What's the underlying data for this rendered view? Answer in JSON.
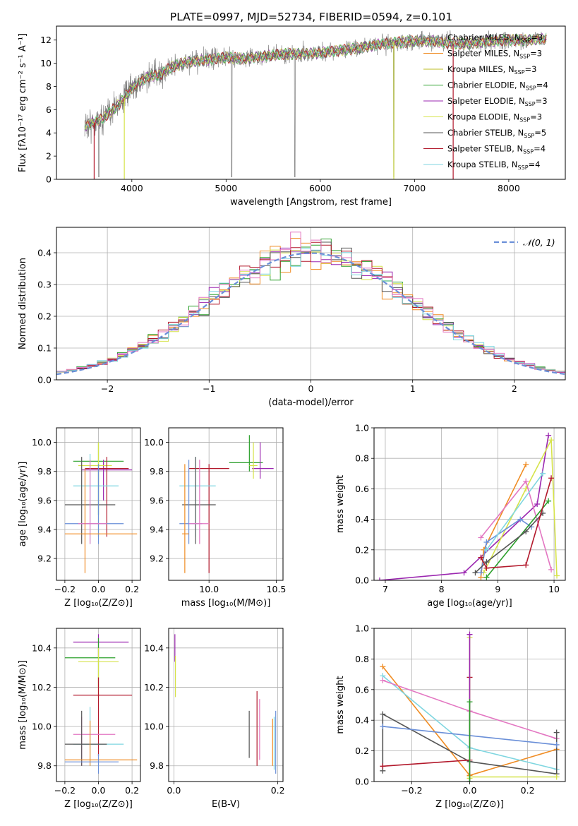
{
  "figure": {
    "title": "PLATE=0997, MJD=52734, FIBERID=0594, z=0.101"
  },
  "series_colors": [
    "#7f7f7f",
    "#f08c23",
    "#bcbd22",
    "#2ca02c",
    "#9b27b0",
    "#d6e34a",
    "#555555",
    "#b2182b",
    "#7fd6e0",
    "#e377c2",
    "#6a8fd8"
  ],
  "chart_data": [
    {
      "id": "spectrum",
      "type": "line",
      "title": "PLATE=0997, MJD=52734, FIBERID=0594, z=0.101",
      "xlabel": "wavelength [Angstrom, rest frame]",
      "ylabel": "Flux [fλ10⁻¹⁷ erg cm⁻² s⁻¹ A⁻¹]",
      "xlim": [
        3200,
        8600
      ],
      "ylim": [
        0,
        13.2
      ],
      "xticks": [
        4000,
        5000,
        6000,
        7000,
        8000
      ],
      "yticks": [
        0,
        2,
        4,
        6,
        8,
        10,
        12
      ],
      "grid": false,
      "legend_position": "right",
      "continuum": {
        "x": [
          3500,
          3600,
          3700,
          3800,
          3900,
          4000,
          4100,
          4200,
          4300,
          4400,
          4500,
          4600,
          4800,
          5000,
          5200,
          5400,
          5600,
          5800,
          6000,
          6200,
          6400,
          6600,
          6800,
          7000,
          7200,
          7400,
          7600,
          7800,
          8000,
          8200,
          8400
        ],
        "y": [
          4.6,
          4.9,
          5.3,
          6.0,
          6.8,
          7.8,
          8.5,
          8.9,
          9.0,
          9.6,
          9.9,
          10.1,
          10.3,
          10.5,
          10.4,
          10.6,
          10.8,
          10.8,
          10.9,
          11.1,
          11.3,
          11.6,
          11.8,
          11.9,
          11.9,
          11.7,
          11.7,
          11.9,
          12.0,
          12.0,
          12.1
        ]
      },
      "legend": [
        "Chabrier MILES, N_SSP=3",
        "Salpeter MILES, N_SSP=3",
        "Kroupa MILES, N_SSP=3",
        "Chabrier ELODIE, N_SSP=4",
        "Salpeter ELODIE, N_SSP=3",
        "Kroupa ELODIE, N_SSP=3",
        "Chabrier STELIB, N_SSP=5",
        "Salpeter STELIB, N_SSP=4",
        "Kroupa STELIB, N_SSP=4"
      ]
    },
    {
      "id": "residuals",
      "type": "line",
      "xlabel": "(data-model)/error",
      "ylabel": "Normed distribution",
      "xlim": [
        -2.5,
        2.5
      ],
      "ylim": [
        0,
        0.48
      ],
      "xticks": [
        -2,
        -1,
        0,
        1,
        2
      ],
      "yticks": [
        0.0,
        0.1,
        0.2,
        0.3,
        0.4
      ],
      "grid": true,
      "legend": [
        "𝒩(0, 1)"
      ],
      "legend_position": "top-right",
      "bin_width": 0.1,
      "gaussian": {
        "mean": 0,
        "sigma": 1
      }
    },
    {
      "id": "age-vs-Z",
      "type": "scatter",
      "xlabel": "Z [log₁₀(Z/Z⊙)]",
      "ylabel": "age [log₁₀(age/yr)]",
      "xlim": [
        -0.25,
        0.25
      ],
      "ylim": [
        9.05,
        10.1
      ],
      "xticks": [
        -0.2,
        0.0,
        0.2
      ],
      "yticks": [
        9.2,
        9.4,
        9.6,
        9.8,
        10.0
      ],
      "grid": true,
      "points": [
        {
          "x": 0.0,
          "y": 9.87,
          "xlo": -0.15,
          "xhi": 0.15,
          "ylo": 9.5,
          "yhi": 10.0,
          "c": 3
        },
        {
          "x": 0.03,
          "y": 9.81,
          "xlo": -0.1,
          "xhi": 0.2,
          "ylo": 9.6,
          "yhi": 9.88,
          "c": 4
        },
        {
          "x": 0.0,
          "y": 9.84,
          "xlo": -0.12,
          "xhi": 0.08,
          "ylo": 9.35,
          "yhi": 10.0,
          "c": 5
        },
        {
          "x": 0.05,
          "y": 9.82,
          "xlo": -0.08,
          "xhi": 0.18,
          "ylo": 9.35,
          "yhi": 9.9,
          "c": 7
        },
        {
          "x": -0.05,
          "y": 9.7,
          "xlo": -0.15,
          "xhi": 0.12,
          "ylo": 9.3,
          "yhi": 9.92,
          "c": 8
        },
        {
          "x": -0.1,
          "y": 9.57,
          "xlo": -0.2,
          "xhi": 0.1,
          "ylo": 9.3,
          "yhi": 9.9,
          "c": 6
        },
        {
          "x": 0.0,
          "y": 9.44,
          "xlo": -0.2,
          "xhi": 0.15,
          "ylo": 9.3,
          "yhi": 9.85,
          "c": 10
        },
        {
          "x": -0.05,
          "y": 9.44,
          "xlo": -0.12,
          "xhi": 0.05,
          "ylo": 9.3,
          "yhi": 9.88,
          "c": 9
        },
        {
          "x": -0.08,
          "y": 9.37,
          "xlo": -0.2,
          "xhi": 0.23,
          "ylo": 9.1,
          "yhi": 9.82,
          "c": 1
        }
      ]
    },
    {
      "id": "age-vs-mass",
      "type": "scatter",
      "xlabel": "mass [log₁₀(M/M⊙)]",
      "ylabel": "",
      "xlim": [
        9.7,
        10.55
      ],
      "ylim": [
        9.05,
        10.1
      ],
      "xticks": [
        10.0,
        10.5
      ],
      "yticks": [
        9.2,
        9.4,
        9.6,
        9.8,
        10.0
      ],
      "grid": true,
      "points": [
        {
          "x": 10.3,
          "y": 9.86,
          "xlo": 10.15,
          "xhi": 10.4,
          "ylo": 9.8,
          "yhi": 10.05,
          "c": 3
        },
        {
          "x": 10.38,
          "y": 9.82,
          "xlo": 10.32,
          "xhi": 10.48,
          "ylo": 9.75,
          "yhi": 10.0,
          "c": 4
        },
        {
          "x": 10.33,
          "y": 9.84,
          "xlo": 10.3,
          "xhi": 10.36,
          "ylo": 9.75,
          "yhi": 10.0,
          "c": 5
        },
        {
          "x": 10.0,
          "y": 9.82,
          "xlo": 9.85,
          "xhi": 10.15,
          "ylo": 9.1,
          "yhi": 9.85,
          "c": 7
        },
        {
          "x": 9.9,
          "y": 9.7,
          "xlo": 9.78,
          "xhi": 10.05,
          "ylo": 9.35,
          "yhi": 9.9,
          "c": 8
        },
        {
          "x": 9.9,
          "y": 9.57,
          "xlo": 9.8,
          "xhi": 10.05,
          "ylo": 9.3,
          "yhi": 9.9,
          "c": 6
        },
        {
          "x": 9.85,
          "y": 9.44,
          "xlo": 9.78,
          "xhi": 9.95,
          "ylo": 9.3,
          "yhi": 9.88,
          "c": 10
        },
        {
          "x": 9.93,
          "y": 9.44,
          "xlo": 9.85,
          "xhi": 10.0,
          "ylo": 9.3,
          "yhi": 9.88,
          "c": 9
        },
        {
          "x": 9.82,
          "y": 9.37,
          "xlo": 9.8,
          "xhi": 9.85,
          "ylo": 9.1,
          "yhi": 9.85,
          "c": 1
        }
      ]
    },
    {
      "id": "weight-vs-age",
      "type": "line",
      "xlabel": "age [log₁₀(age/yr)]",
      "ylabel": "mass weight",
      "xlim": [
        6.8,
        10.2
      ],
      "ylim": [
        0,
        1
      ],
      "xticks": [
        7,
        8,
        9,
        10
      ],
      "yticks": [
        0.0,
        0.2,
        0.4,
        0.6,
        0.8,
        1.0
      ],
      "grid": true,
      "series": [
        {
          "c": 4,
          "x": [
            6.9,
            8.4,
            9.7,
            9.9
          ],
          "y": [
            0.0,
            0.05,
            0.5,
            0.95
          ]
        },
        {
          "c": 1,
          "x": [
            8.7,
            8.75,
            9.5
          ],
          "y": [
            0.02,
            0.2,
            0.76
          ]
        },
        {
          "c": 5,
          "x": [
            8.75,
            9.5,
            9.95,
            10.05
          ],
          "y": [
            0.05,
            0.6,
            0.92,
            0.03
          ]
        },
        {
          "c": 9,
          "x": [
            8.7,
            9.5,
            9.95
          ],
          "y": [
            0.28,
            0.65,
            0.07
          ]
        },
        {
          "c": 10,
          "x": [
            8.7,
            8.8,
            9.4,
            9.6
          ],
          "y": [
            0.05,
            0.25,
            0.4,
            0.35
          ]
        },
        {
          "c": 8,
          "x": [
            8.8,
            9.8
          ],
          "y": [
            0.2,
            0.7
          ]
        },
        {
          "c": 3,
          "x": [
            8.8,
            9.9
          ],
          "y": [
            0.02,
            0.52
          ]
        },
        {
          "c": 6,
          "x": [
            8.6,
            8.8,
            9.5,
            9.8
          ],
          "y": [
            0.05,
            0.12,
            0.32,
            0.44
          ]
        },
        {
          "c": 7,
          "x": [
            8.7,
            8.8,
            9.5,
            9.95
          ],
          "y": [
            0.15,
            0.08,
            0.1,
            0.67
          ]
        }
      ]
    },
    {
      "id": "mass-vs-Z",
      "type": "scatter",
      "xlabel": "Z [log₁₀(Z/Z⊙)]",
      "ylabel": "mass [log₁₀(M/M⊙)]",
      "xlim": [
        -0.25,
        0.25
      ],
      "ylim": [
        9.72,
        10.5
      ],
      "xticks": [
        -0.2,
        0.0,
        0.2
      ],
      "yticks": [
        9.8,
        10.0,
        10.2,
        10.4
      ],
      "grid": true,
      "points": [
        {
          "x": 0.0,
          "y": 10.43,
          "xlo": -0.15,
          "xhi": 0.18,
          "ylo": 10.35,
          "yhi": 10.47,
          "c": 4
        },
        {
          "x": 0.0,
          "y": 10.35,
          "xlo": -0.2,
          "xhi": 0.1,
          "ylo": 10.2,
          "yhi": 10.45,
          "c": 3
        },
        {
          "x": 0.0,
          "y": 10.33,
          "xlo": -0.12,
          "xhi": 0.12,
          "ylo": 10.15,
          "yhi": 10.4,
          "c": 5
        },
        {
          "x": 0.0,
          "y": 10.16,
          "xlo": -0.15,
          "xhi": 0.2,
          "ylo": 9.85,
          "yhi": 10.25,
          "c": 7
        },
        {
          "x": -0.1,
          "y": 9.96,
          "xlo": -0.15,
          "xhi": 0.1,
          "ylo": 9.8,
          "yhi": 10.05,
          "c": 9
        },
        {
          "x": -0.05,
          "y": 9.91,
          "xlo": -0.15,
          "xhi": 0.15,
          "ylo": 9.8,
          "yhi": 10.1,
          "c": 8
        },
        {
          "x": -0.1,
          "y": 9.91,
          "xlo": -0.2,
          "xhi": 0.05,
          "ylo": 9.8,
          "yhi": 10.08,
          "c": 6
        },
        {
          "x": -0.05,
          "y": 9.83,
          "xlo": -0.2,
          "xhi": 0.23,
          "ylo": 9.8,
          "yhi": 10.03,
          "c": 1
        },
        {
          "x": 0.0,
          "y": 9.82,
          "xlo": -0.2,
          "xhi": 0.12,
          "ylo": 9.76,
          "yhi": 9.86,
          "c": 10
        }
      ]
    },
    {
      "id": "mass-vs-EBV",
      "type": "scatter",
      "xlabel": "E(B-V)",
      "ylabel": "",
      "xlim": [
        -0.01,
        0.21
      ],
      "ylim": [
        9.72,
        10.5
      ],
      "xticks": [
        0.0,
        0.2
      ],
      "yticks": [
        9.8,
        10.0,
        10.2,
        10.4
      ],
      "grid": true,
      "points": [
        {
          "x": 0.002,
          "y": 10.4,
          "xlo": 0.002,
          "xhi": 0.002,
          "ylo": 10.33,
          "yhi": 10.47,
          "c": 4
        },
        {
          "x": 0.003,
          "y": 10.25,
          "xlo": 0.003,
          "xhi": 0.003,
          "ylo": 10.15,
          "yhi": 10.36,
          "c": 5
        },
        {
          "x": 0.145,
          "y": 9.97,
          "xlo": 0.145,
          "xhi": 0.145,
          "ylo": 9.84,
          "yhi": 10.08,
          "c": 6
        },
        {
          "x": 0.16,
          "y": 10.05,
          "xlo": 0.16,
          "xhi": 0.16,
          "ylo": 9.8,
          "yhi": 10.18,
          "c": 7
        },
        {
          "x": 0.165,
          "y": 9.98,
          "xlo": 0.165,
          "xhi": 0.165,
          "ylo": 9.83,
          "yhi": 10.14,
          "c": 9
        },
        {
          "x": 0.19,
          "y": 9.93,
          "xlo": 0.19,
          "xhi": 0.19,
          "ylo": 9.8,
          "yhi": 10.04,
          "c": 1
        },
        {
          "x": 0.193,
          "y": 9.9,
          "xlo": 0.193,
          "xhi": 0.193,
          "ylo": 9.78,
          "yhi": 10.05,
          "c": 8
        },
        {
          "x": 0.196,
          "y": 9.9,
          "xlo": 0.196,
          "xhi": 0.196,
          "ylo": 9.76,
          "yhi": 10.08,
          "c": 10
        }
      ]
    },
    {
      "id": "weight-vs-Z",
      "type": "line",
      "xlabel": "Z [log₁₀(Z/Z⊙)]",
      "ylabel": "mass weight",
      "xlim": [
        -0.33,
        0.33
      ],
      "ylim": [
        0,
        1
      ],
      "xticks": [
        -0.2,
        0.0,
        0.2
      ],
      "yticks": [
        0.0,
        0.2,
        0.4,
        0.6,
        0.8,
        1.0
      ],
      "grid": true,
      "series": [
        {
          "c": 1,
          "x": [
            -0.3,
            0.0,
            0.3
          ],
          "y": [
            0.75,
            0.04,
            0.21
          ]
        },
        {
          "c": 8,
          "x": [
            -0.3,
            0.0,
            0.3
          ],
          "y": [
            0.69,
            0.22,
            0.08
          ]
        },
        {
          "c": 9,
          "x": [
            -0.3,
            0.0,
            0.3
          ],
          "y": [
            0.66,
            0.46,
            0.28
          ]
        },
        {
          "c": 6,
          "x": [
            -0.3,
            -0.3,
            0.0,
            0.3,
            0.3
          ],
          "y": [
            0.07,
            0.44,
            0.13,
            0.05,
            0.32
          ]
        },
        {
          "c": 10,
          "x": [
            -0.3,
            0.3
          ],
          "y": [
            0.36,
            0.24
          ]
        },
        {
          "c": 7,
          "x": [
            -0.3,
            0.0,
            0.0
          ],
          "y": [
            0.1,
            0.14,
            0.68
          ]
        },
        {
          "c": 5,
          "x": [
            0.0,
            0.0,
            0.0,
            0.3
          ],
          "y": [
            0.02,
            0.94,
            0.03,
            0.03
          ]
        },
        {
          "c": 4,
          "x": [
            0.0,
            0.0
          ],
          "y": [
            0.0,
            0.96
          ]
        },
        {
          "c": 3,
          "x": [
            0.0,
            0.0
          ],
          "y": [
            0.0,
            0.52
          ]
        }
      ]
    }
  ]
}
